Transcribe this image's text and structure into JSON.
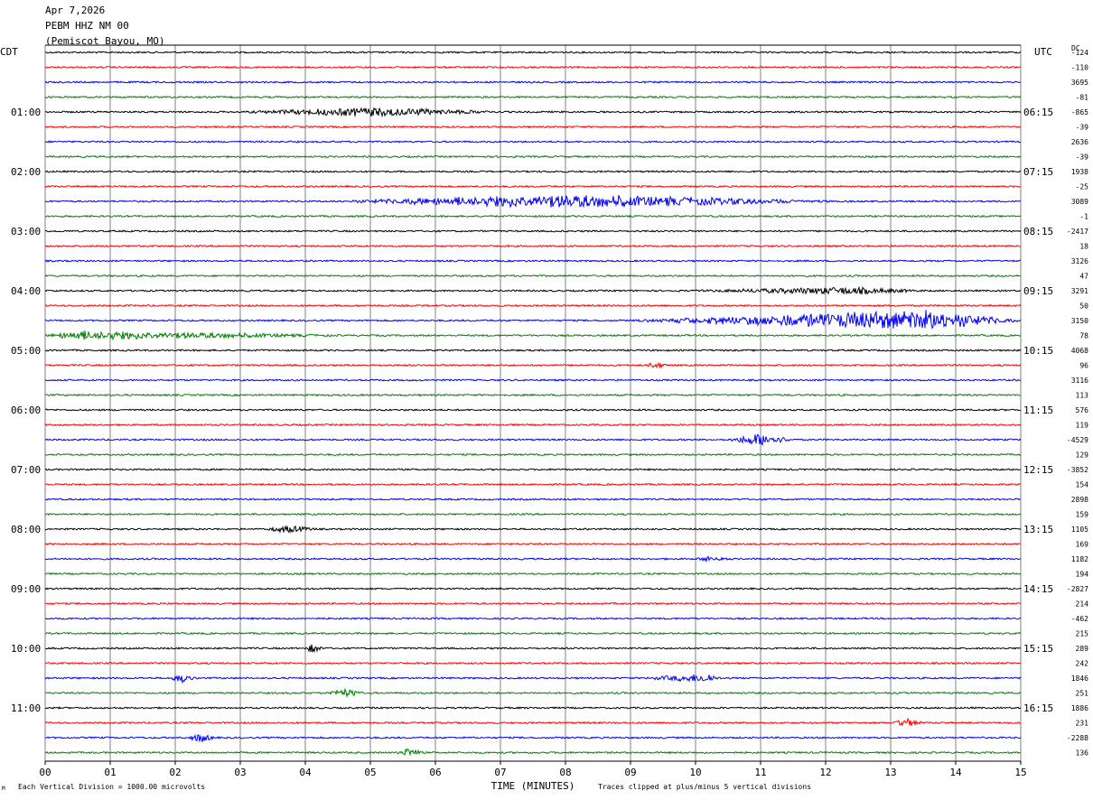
{
  "header": {
    "date": "Apr 7,2026",
    "station": "PEBM HHZ NM 00",
    "location": "(Pemiscot Bayou, MO)"
  },
  "left_axis_title": "CDT",
  "right_axis_title": "UTC",
  "dc_title": "DC",
  "footer": {
    "division_note": "Each Vertical Division = 1000.00 microvolts",
    "clip_note": "Traces clipped at plus/minus 5 vertical divisions",
    "corner_mark": "M"
  },
  "chart_data": {
    "type": "line",
    "title": "PEBM HHZ NM 00",
    "xlabel": "TIME (MINUTES)",
    "xlim": [
      0,
      15
    ],
    "x_ticks": [
      "00",
      "01",
      "02",
      "03",
      "04",
      "05",
      "06",
      "07",
      "08",
      "09",
      "10",
      "11",
      "12",
      "13",
      "14",
      "15"
    ],
    "trace_colors": [
      "#000000",
      "#ff0000",
      "#0000ff",
      "#008000"
    ],
    "trace_count": 48,
    "left_hour_labels": [
      "01:00",
      "02:00",
      "03:00",
      "04:00",
      "05:00",
      "06:00",
      "07:00",
      "08:00",
      "09:00",
      "10:00",
      "11:00"
    ],
    "right_hour_labels": [
      "06:15",
      "07:15",
      "08:15",
      "09:15",
      "10:15",
      "11:15",
      "12:15",
      "13:15",
      "14:15",
      "15:15",
      "16:15"
    ],
    "dc_offsets": [
      "-124",
      "-110",
      "3695",
      "-81",
      "-865",
      "-39",
      "2636",
      "-39",
      "1938",
      "-25",
      "3089",
      "-1",
      "-2417",
      "18",
      "3126",
      "47",
      "3291",
      "50",
      "3150",
      "78",
      "4068",
      "96",
      "3116",
      "113",
      "576",
      "119",
      "-4529",
      "129",
      "-3852",
      "154",
      "2898",
      "159",
      "1105",
      "169",
      "1182",
      "194",
      "-2827",
      "214",
      "-462",
      "215",
      "289",
      "242",
      "1846",
      "251",
      "1886",
      "231",
      "-2288",
      "136"
    ],
    "events": [
      {
        "trace": 4,
        "start_min": 3.0,
        "end_min": 7.0,
        "peak_min": 5.0,
        "amplitude": 5
      },
      {
        "trace": 10,
        "start_min": 4.5,
        "end_min": 12.2,
        "peak_min": 7.8,
        "amplitude": 8
      },
      {
        "trace": 16,
        "start_min": 10.0,
        "end_min": 13.5,
        "peak_min": 12.3,
        "amplitude": 4
      },
      {
        "trace": 18,
        "start_min": 9.0,
        "end_min": 15.0,
        "peak_min": 13.5,
        "amplitude": 12
      },
      {
        "trace": 19,
        "start_min": 0.0,
        "end_min": 4.5,
        "peak_min": 0.5,
        "amplitude": 5
      },
      {
        "trace": 26,
        "start_min": 10.5,
        "end_min": 11.5,
        "peak_min": 11.0,
        "amplitude": 8
      },
      {
        "trace": 32,
        "start_min": 3.4,
        "end_min": 4.2,
        "peak_min": 3.7,
        "amplitude": 4
      },
      {
        "trace": 42,
        "start_min": 1.9,
        "end_min": 2.3,
        "peak_min": 2.1,
        "amplitude": 5
      },
      {
        "trace": 42,
        "start_min": 9.2,
        "end_min": 10.4,
        "peak_min": 10.2,
        "amplitude": 5
      },
      {
        "trace": 43,
        "start_min": 4.3,
        "end_min": 4.9,
        "peak_min": 4.6,
        "amplitude": 5
      },
      {
        "trace": 45,
        "start_min": 13.0,
        "end_min": 13.5,
        "peak_min": 13.3,
        "amplitude": 5
      },
      {
        "trace": 46,
        "start_min": 2.2,
        "end_min": 2.6,
        "peak_min": 2.4,
        "amplitude": 6
      },
      {
        "trace": 47,
        "start_min": 5.4,
        "end_min": 5.8,
        "peak_min": 5.6,
        "amplitude": 5
      },
      {
        "trace": 40,
        "start_min": 4.0,
        "end_min": 4.3,
        "peak_min": 4.1,
        "amplitude": 5
      },
      {
        "trace": 21,
        "start_min": 9.2,
        "end_min": 9.6,
        "peak_min": 9.4,
        "amplitude": 3
      },
      {
        "trace": 34,
        "start_min": 10.0,
        "end_min": 10.5,
        "peak_min": 10.2,
        "amplitude": 3
      }
    ]
  }
}
